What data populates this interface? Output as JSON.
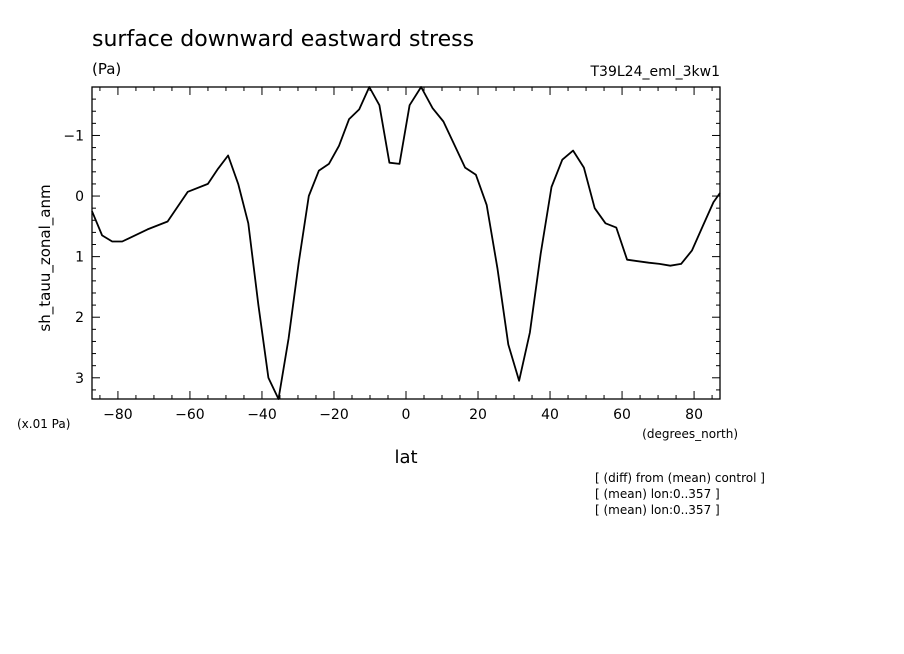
{
  "chart_data": {
    "type": "line",
    "title": "surface downward eastward stress",
    "units_label": "(Pa)",
    "run_label": "T39L24_eml_3kw1",
    "ylabel": "sh_tauu_zonal_anm",
    "xlabel": "lat",
    "x_units_label": "(degrees_north)",
    "y_scale_label": "(x.01 Pa)",
    "notes": [
      "[ (diff) from (mean) control ]",
      "[ (mean) lon:0..357 ]",
      "[ (mean) lon:0..357 ]"
    ],
    "xlim": [
      -87.2,
      87.2
    ],
    "ylim": [
      3.35,
      -1.8
    ],
    "y_inverted": true,
    "x_ticks": [
      -80,
      -60,
      -40,
      -20,
      0,
      20,
      40,
      60,
      80
    ],
    "x_tick_labels": [
      "−80",
      "−60",
      "−40",
      "−20",
      "0",
      "20",
      "40",
      "60",
      "80"
    ],
    "y_ticks": [
      -1,
      0,
      1,
      2,
      3
    ],
    "y_tick_labels": [
      "−1",
      "0",
      "1",
      "2",
      "3"
    ],
    "series": [
      {
        "x": [
          -87.2,
          -84.4,
          -81.6,
          -78.8,
          -71.8,
          -66.2,
          -60.6,
          -55.0,
          -52.2,
          -49.4,
          -46.6,
          -43.8,
          -41.0,
          -38.2,
          -35.4,
          -32.6,
          -29.8,
          -27.0,
          -24.2,
          -21.4,
          -18.6,
          -15.8,
          -13.0,
          -10.2,
          -7.4,
          -4.6,
          -1.8,
          1.0,
          4.2,
          7.4,
          10.4,
          13.4,
          16.4,
          19.4,
          22.4,
          25.4,
          28.4,
          31.4,
          34.4,
          37.4,
          40.4,
          43.4,
          46.4,
          49.4,
          52.4,
          55.4,
          58.4,
          61.4,
          67.4,
          70.4,
          73.4,
          76.4,
          79.4,
          82.4,
          85.4,
          87.2
        ],
        "y": [
          0.25,
          0.65,
          0.75,
          0.75,
          0.55,
          0.42,
          -0.07,
          -0.2,
          -0.45,
          -0.67,
          -0.2,
          0.45,
          1.8,
          3.0,
          3.35,
          2.35,
          1.1,
          0.0,
          -0.42,
          -0.53,
          -0.83,
          -1.27,
          -1.43,
          -1.8,
          -1.5,
          -0.55,
          -0.53,
          -1.5,
          -1.8,
          -1.45,
          -1.23,
          -0.85,
          -0.47,
          -0.35,
          0.15,
          1.2,
          2.45,
          3.05,
          2.25,
          0.95,
          -0.15,
          -0.6,
          -0.75,
          -0.47,
          0.2,
          0.45,
          0.52,
          1.05,
          1.1,
          1.12,
          1.15,
          1.12,
          0.9,
          0.5,
          0.1,
          -0.05
        ]
      }
    ],
    "grid": false,
    "legend": "none"
  }
}
